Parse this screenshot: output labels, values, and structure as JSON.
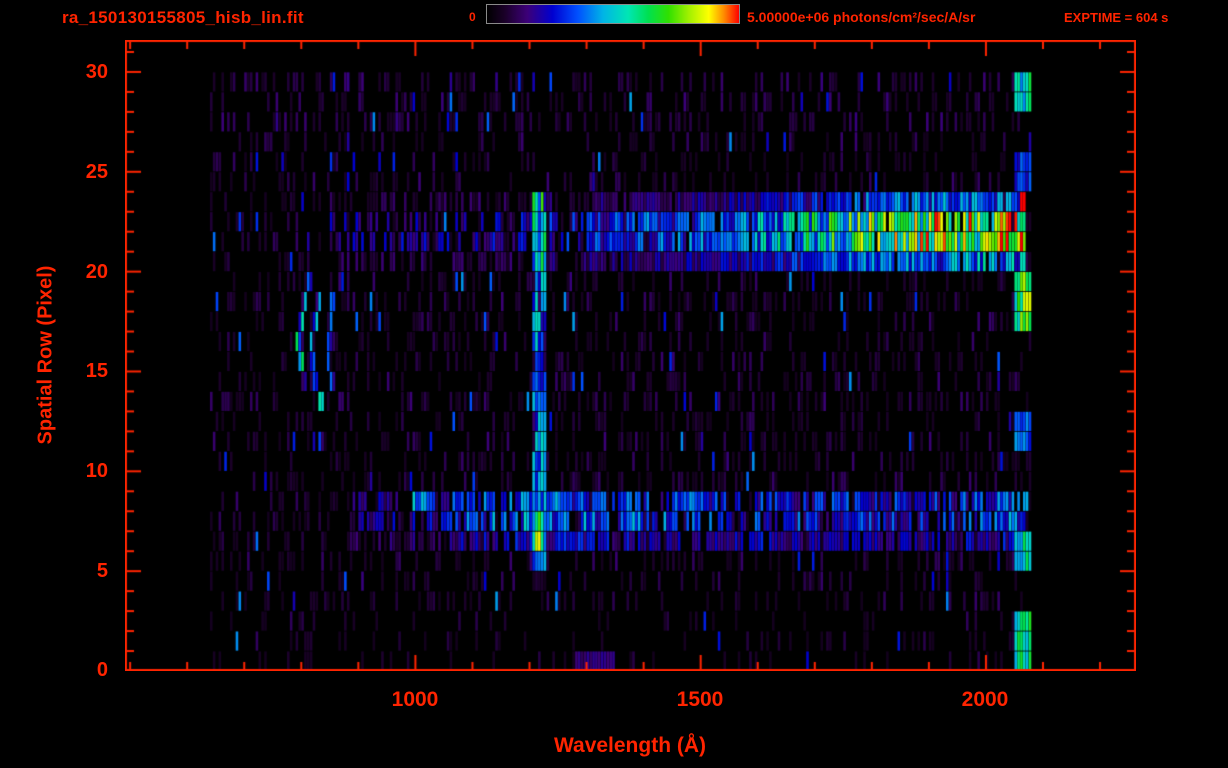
{
  "chart_data": {
    "type": "heatmap",
    "title": "ra_150130155805_hisb_lin.fit",
    "exptime_label": "EXPTIME = 604 s",
    "exptime_seconds": 604,
    "xlabel": "Wavelength (Å)",
    "ylabel": "Spatial Row (Pixel)",
    "xlim": [
      491,
      2263
    ],
    "ylim": [
      0,
      31.6
    ],
    "xticks": [
      1000,
      1500,
      2000
    ],
    "xtick_minor_step": 100,
    "yticks": [
      0,
      5,
      10,
      15,
      20,
      25,
      30
    ],
    "ytick_minor_step": 1,
    "frame_color": "#ff2400",
    "label_color": "#ff2400",
    "background_color": "#000000",
    "colorbar": {
      "min_label": "0",
      "max_label": "5.00000e+06 photons/cm²/sec/A/sr",
      "min_value": 0,
      "max_value": 5000000,
      "units": "photons/cm²/sec/A/sr",
      "scale": "linear",
      "border_color": "#8a8a8a",
      "stops": [
        [
          0,
          "#000000"
        ],
        [
          0.07,
          "#1a0028"
        ],
        [
          0.16,
          "#3c0078"
        ],
        [
          0.26,
          "#0000d0"
        ],
        [
          0.36,
          "#0050ff"
        ],
        [
          0.46,
          "#00b4e6"
        ],
        [
          0.56,
          "#00e6b4"
        ],
        [
          0.64,
          "#00e050"
        ],
        [
          0.72,
          "#30e000"
        ],
        [
          0.8,
          "#a0f000"
        ],
        [
          0.88,
          "#ffff00"
        ],
        [
          0.94,
          "#ff8c00"
        ],
        [
          1,
          "#ff0000"
        ]
      ]
    },
    "data_extent": {
      "wavelength": [
        640,
        2080
      ],
      "rows": [
        0,
        30
      ]
    },
    "render": {
      "seed": 20150130,
      "col_width_angstrom": 5
    },
    "features": [
      {
        "id": "background-noise-low",
        "kind": "noise",
        "wavelength": [
          640,
          2080
        ],
        "rows": [
          0,
          3.5
        ],
        "density": 0.12,
        "intensity": [
          0.05,
          0.14
        ]
      },
      {
        "id": "background-noise-mid",
        "kind": "noise",
        "wavelength": [
          640,
          2080
        ],
        "rows": [
          3.5,
          27.5
        ],
        "density": 0.26,
        "intensity": [
          0.05,
          0.17
        ]
      },
      {
        "id": "background-noise-top",
        "kind": "noise",
        "wavelength": [
          640,
          2080
        ],
        "rows": [
          27.5,
          30
        ],
        "density": 0.34,
        "intensity": [
          0.06,
          0.2
        ]
      },
      {
        "id": "upper-spectrum-tail",
        "kind": "band",
        "wavelength": [
          850,
          1300
        ],
        "rows": [
          20.3,
          23.6
        ],
        "dropout": 0.58,
        "profile": [
          [
            850,
            0.2
          ],
          [
            1300,
            0.28
          ]
        ]
      },
      {
        "id": "upper-spectrum-main",
        "kind": "band",
        "wavelength": [
          1300,
          2068
        ],
        "rows": [
          20.3,
          23.6
        ],
        "dropout": 0.08,
        "profile": [
          [
            1300,
            0.3
          ],
          [
            1550,
            0.38
          ],
          [
            1700,
            0.55
          ],
          [
            1800,
            0.68
          ],
          [
            1900,
            0.76
          ],
          [
            2000,
            0.78
          ],
          [
            2068,
            0.8
          ]
        ]
      },
      {
        "id": "lower-spectrum-tail",
        "kind": "band",
        "wavelength": [
          880,
          1040
        ],
        "rows": [
          6.1,
          9.4
        ],
        "dropout": 0.5,
        "profile": [
          [
            880,
            0.18
          ],
          [
            1040,
            0.26
          ]
        ]
      },
      {
        "id": "lower-spectrum-main",
        "kind": "band",
        "wavelength": [
          1040,
          2072
        ],
        "rows": [
          6.1,
          9.4
        ],
        "dropout": 0.28,
        "profile": [
          [
            1040,
            0.3
          ],
          [
            1216,
            0.42
          ],
          [
            1300,
            0.38
          ],
          [
            1600,
            0.32
          ],
          [
            1900,
            0.3
          ],
          [
            2072,
            0.38
          ]
        ]
      },
      {
        "id": "lyman-alpha-line",
        "kind": "vline",
        "wavelength": [
          1205,
          1226
        ],
        "rows": [
          5,
          24.2
        ],
        "intensity": 0.4
      },
      {
        "id": "lyman-alpha-line-upper",
        "kind": "vline",
        "wavelength": [
          1205,
          1226
        ],
        "rows": [
          20.2,
          24.2
        ],
        "intensity": 0.58
      },
      {
        "id": "lyman-alpha-blob",
        "kind": "blob",
        "center": [
          1216,
          7
        ],
        "sigma": [
          13,
          1.7
        ],
        "intensity": 0.85
      },
      {
        "id": "left-arc-outer",
        "kind": "arc",
        "apex": [
          797,
          16.6
        ],
        "curvature": 2.1,
        "rows": [
          13.6,
          19.8
        ],
        "width": 11,
        "intensity": 0.55
      },
      {
        "id": "left-arc-middle",
        "kind": "arc",
        "apex": [
          820,
          16.2
        ],
        "curvature": 1.9,
        "rows": [
          13.2,
          19.0
        ],
        "width": 10,
        "intensity": 0.42
      },
      {
        "id": "left-arc-faint",
        "kind": "arc",
        "apex": [
          848,
          16.5
        ],
        "curvature": 2.3,
        "rows": [
          13.4,
          20.0
        ],
        "width": 10,
        "intensity": 0.3
      },
      {
        "id": "right-edge-glow",
        "kind": "spots",
        "wavelength": [
          2046,
          2076
        ],
        "spots": [
          {
            "rows": [
              0.4,
              3.2
            ],
            "intensity": 0.55
          },
          {
            "rows": [
              5.0,
              6.6
            ],
            "intensity": 0.5
          },
          {
            "rows": [
              11.4,
              12.6
            ],
            "intensity": 0.35
          },
          {
            "rows": [
              17.0,
              19.8
            ],
            "intensity": 0.68
          },
          {
            "rows": [
              24.4,
              25.6
            ],
            "intensity": 0.3
          },
          {
            "rows": [
              27.6,
              29.9
            ],
            "intensity": 0.55
          },
          {
            "rows": [
              23.3,
              23.9
            ],
            "wavelength": [
              2058,
              2070
            ],
            "intensity": 0.95
          },
          {
            "rows": [
              27.7,
              28.3
            ],
            "wavelength": [
              2036,
              2044
            ],
            "intensity": 0.88
          }
        ]
      },
      {
        "id": "blue-clump",
        "kind": "spots",
        "wavelength": [
          995,
          1032
        ],
        "spots": [
          {
            "rows": [
              8.2,
              9.4
            ],
            "intensity": 0.4
          }
        ]
      },
      {
        "id": "bottom-dashes",
        "kind": "spots",
        "wavelength": [
          1278,
          1348
        ],
        "spots": [
          {
            "rows": [
              0,
              1.3
            ],
            "intensity": 0.16
          }
        ]
      }
    ]
  }
}
